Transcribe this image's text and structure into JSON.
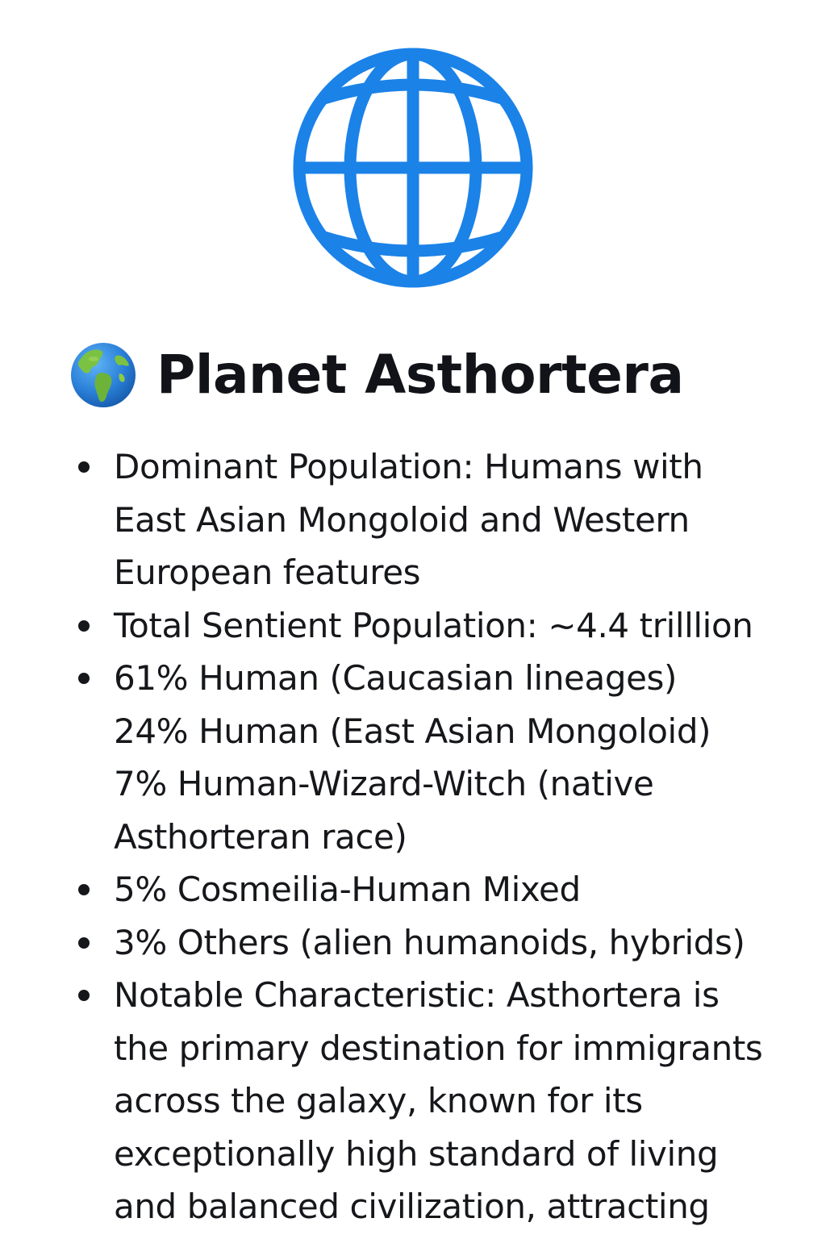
{
  "colors": {
    "globe_stroke": "#1b82e8",
    "text": "#16171b"
  },
  "icons": {
    "globe": "globe-outline-icon",
    "earth": "earth-americas-emoji-icon"
  },
  "title": "Planet Asthortera",
  "facts": [
    {
      "lines": [
        "Dominant Population: Humans with",
        "East Asian Mongoloid and Western",
        "European features"
      ]
    },
    {
      "lines": [
        "Total Sentient Population: ~4.4 trilllion"
      ]
    },
    {
      "lines": [
        "61% Human (Caucasian lineages)",
        "24% Human (East Asian Mongoloid)",
        "7% Human-Wizard-Witch (native",
        "Asthorteran race)"
      ]
    },
    {
      "lines": [
        "5% Cosmeilia-Human Mixed"
      ]
    },
    {
      "lines": [
        "3% Others (alien humanoids, hybrids)"
      ]
    },
    {
      "lines": [
        "Notable Characteristic: Asthortera is",
        "the primary destination for immigrants",
        "across the galaxy, known for its",
        "exceptionally high standard of living",
        "and balanced civilization, attracting"
      ]
    }
  ]
}
